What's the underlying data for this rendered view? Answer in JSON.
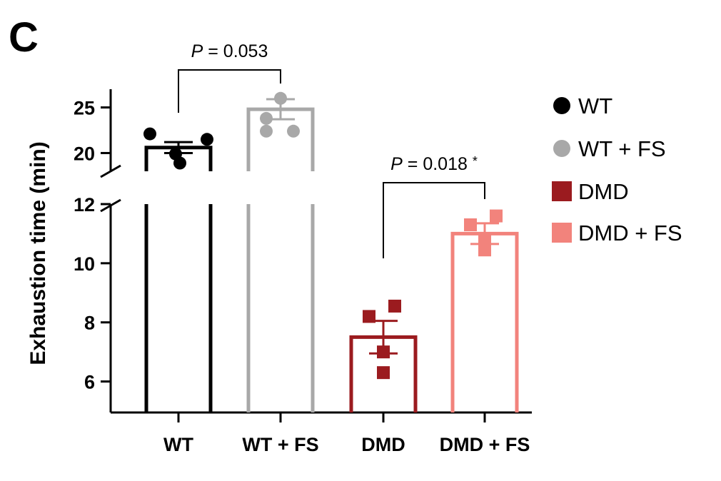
{
  "panel_label": "C",
  "chart_data": {
    "type": "bar",
    "ylabel": "Exhaustion time (min)",
    "xlabel": "",
    "broken_axis": true,
    "y_lower_range": [
      5,
      12
    ],
    "y_upper_range": [
      18,
      27
    ],
    "y_lower_ticks": [
      6,
      8,
      10,
      12
    ],
    "y_upper_ticks": [
      20,
      25
    ],
    "categories": [
      "WT",
      "WT + FS",
      "DMD",
      "DMD + FS"
    ],
    "values": [
      20.6,
      24.8,
      7.5,
      11.0
    ],
    "errors": [
      0.6,
      1.1,
      0.55,
      0.35
    ],
    "points": [
      [
        22.1,
        21.5,
        19.9,
        18.9
      ],
      [
        26.0,
        23.8,
        22.4,
        22.4
      ],
      [
        8.2,
        8.55,
        7.0,
        6.3
      ],
      [
        11.3,
        11.6,
        10.8,
        10.45
      ]
    ],
    "colors": [
      "#000000",
      "#a8a8a8",
      "#9b1b1f",
      "#f2837c"
    ],
    "markers": [
      "circle",
      "circle",
      "square",
      "square"
    ],
    "legend": {
      "position": "right",
      "entries": [
        "WT",
        "WT + FS",
        "DMD",
        "DMD + FS"
      ]
    },
    "comparisons": [
      {
        "from": 0,
        "to": 1,
        "prefix": "P",
        "text": " = 0.053"
      },
      {
        "from": 2,
        "to": 3,
        "prefix": "P",
        "text": " = 0.018",
        "mark": "*"
      }
    ],
    "grid": false
  }
}
